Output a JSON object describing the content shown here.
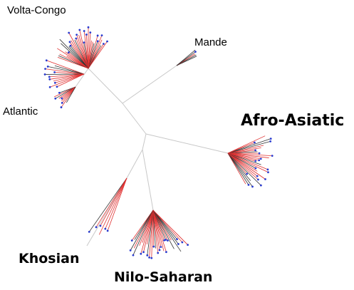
{
  "labels": {
    "volta_congo": "Volta-Congo",
    "mande": "Mande",
    "atlantic": "Atlantic",
    "afro_asiatic": "Afro-Asiatic",
    "khosian": "Khosian",
    "nilo_saharan": "Nilo-Saharan"
  },
  "colors": {
    "trunk": "#c8c8c8",
    "lineage_red": "#e03030",
    "lineage_dark": "#333333",
    "tip": "#2a3cd0"
  }
}
